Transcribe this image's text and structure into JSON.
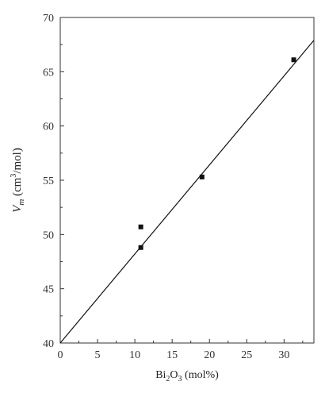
{
  "chart_data": {
    "type": "scatter",
    "xlabel": {
      "prefix": "Bi",
      "sub1": "2",
      "mid": "O",
      "sub2": "3",
      "suffix": " (mol%)"
    },
    "ylabel": {
      "var": "V",
      "sub": "m",
      "text": " (cm",
      "sup": "3",
      "end": "/mol)"
    },
    "xlim": [
      0,
      34
    ],
    "ylim": [
      40,
      70
    ],
    "x_ticks": [
      "0",
      "5",
      "10",
      "15",
      "20",
      "25",
      "30"
    ],
    "y_ticks": [
      "40",
      "45",
      "50",
      "55",
      "60",
      "65",
      "70"
    ],
    "x_tick_values": [
      0,
      5,
      10,
      15,
      20,
      25,
      30
    ],
    "y_tick_values": [
      40,
      45,
      50,
      55,
      60,
      65,
      70
    ],
    "series": [
      {
        "points": [
          {
            "x": 10.8,
            "y": 50.7
          },
          {
            "x": 10.8,
            "y": 48.8
          },
          {
            "x": 19.0,
            "y": 55.3
          },
          {
            "x": 31.3,
            "y": 66.1
          }
        ]
      }
    ],
    "fit_line": {
      "x": [
        0,
        34
      ],
      "y": [
        40.0,
        67.9
      ]
    },
    "grid": false,
    "colors": {
      "axis": "#333333",
      "marker": "#111111",
      "line": "#111111"
    }
  }
}
